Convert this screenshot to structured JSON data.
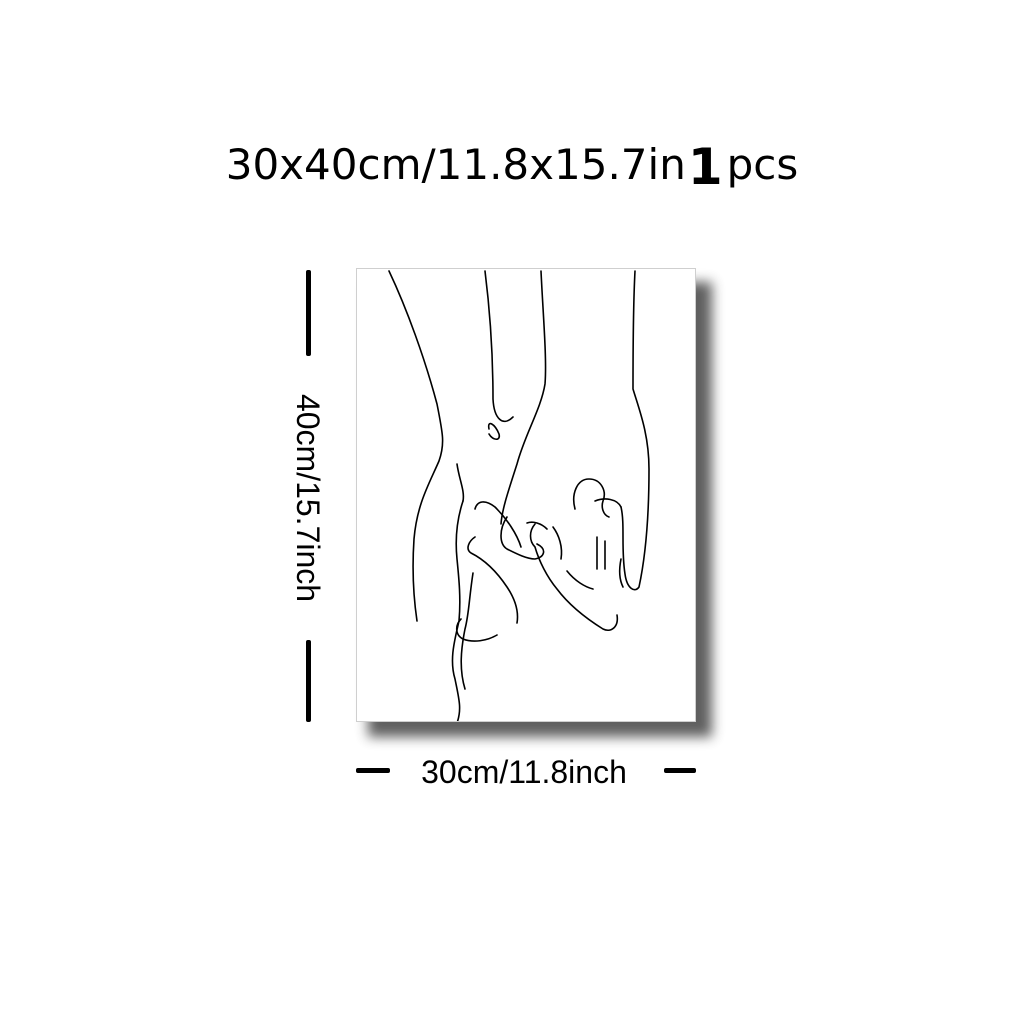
{
  "title": {
    "size_text": "30x40cm/11.8x15.7in",
    "quantity": "1",
    "unit": "pcs"
  },
  "artwork": {
    "icon": "line-art-holding-hands-icon"
  },
  "dimensions": {
    "height_label": "40cm/15.7inch",
    "width_label": "30cm/11.8inch"
  }
}
